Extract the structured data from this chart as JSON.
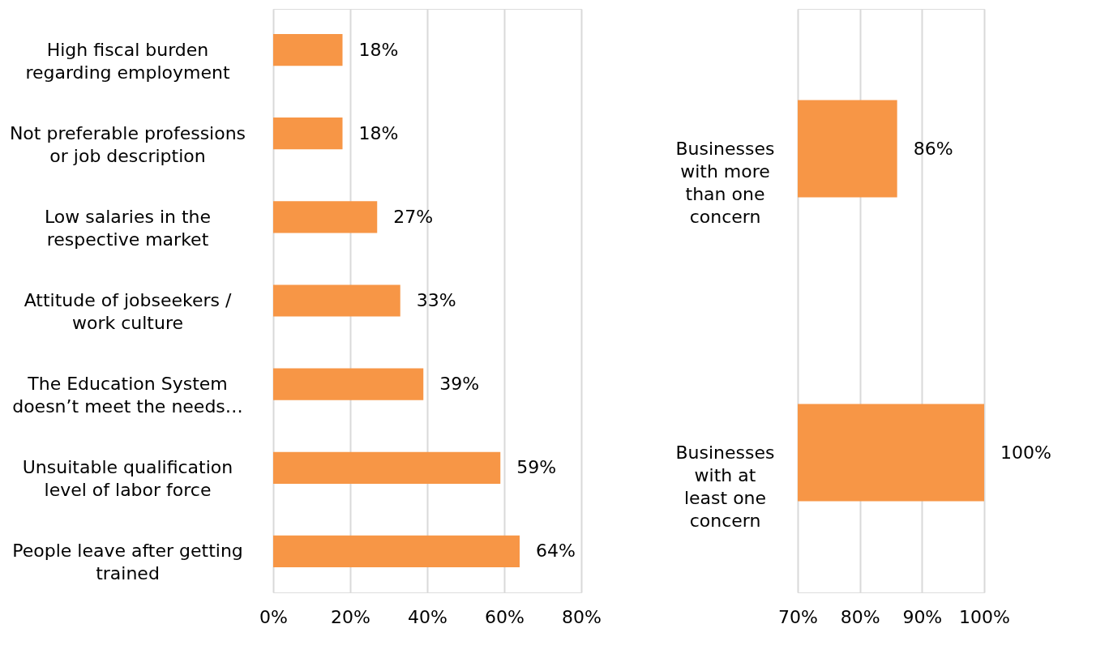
{
  "chart_data": [
    {
      "type": "bar",
      "orientation": "horizontal",
      "categories": [
        "High fiscal burden regarding employment",
        "Not preferable professions or job description",
        "Low salaries in the respective market",
        "Attitude of jobseekers / work culture",
        "The Education System doesn’t meet the needs…",
        "Unsuitable qualification level of labor force",
        "People leave after getting trained"
      ],
      "values": [
        18,
        18,
        27,
        33,
        39,
        59,
        64
      ],
      "color": "#f79646",
      "value_labels": [
        "18%",
        "18%",
        "27%",
        "33%",
        "39%",
        "59%",
        "64%"
      ],
      "xlim": [
        0,
        80
      ],
      "xticks": [
        {
          "value": 0,
          "label": "0%"
        },
        {
          "value": 20,
          "label": "20%"
        },
        {
          "value": 40,
          "label": "40%"
        },
        {
          "value": 60,
          "label": "60%"
        },
        {
          "value": 80,
          "label": "80%"
        }
      ],
      "grid": "x"
    },
    {
      "type": "bar",
      "orientation": "horizontal",
      "categories": [
        "Businesses with more than one concern",
        "Businesses with at least one concern"
      ],
      "values": [
        86,
        100
      ],
      "color": "#f79646",
      "value_labels": [
        "86%",
        "100%"
      ],
      "xlim": [
        70,
        100
      ],
      "xticks": [
        {
          "value": 70,
          "label": "70%"
        },
        {
          "value": 80,
          "label": "80%"
        },
        {
          "value": 90,
          "label": "90%"
        },
        {
          "value": 100,
          "label": "100%"
        }
      ],
      "grid": "x"
    }
  ]
}
